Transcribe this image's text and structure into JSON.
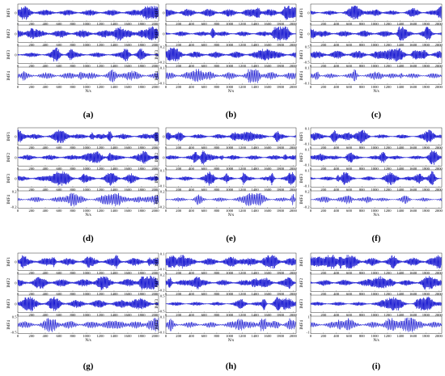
{
  "chart_data": {
    "type": "line",
    "x_ticks": [
      0,
      200,
      400,
      600,
      800,
      1000,
      1200,
      1400,
      1600,
      1800,
      2000
    ],
    "x_range": [
      0,
      2048
    ],
    "xlabel": "N/s",
    "line_color": "#0000cc",
    "panels": [
      {
        "label": "(a)",
        "subplots": [
          {
            "ylabel": "IMF1",
            "yticks": [
              "0",
              ""
            ],
            "ylim": [
              -1,
              1
            ]
          },
          {
            "ylabel": "IMF2",
            "yticks": [
              "0",
              ""
            ],
            "ylim": [
              -1,
              1
            ]
          },
          {
            "ylabel": "IMF3",
            "yticks": [
              "0",
              ""
            ],
            "ylim": [
              -1,
              1
            ]
          },
          {
            "ylabel": "IMF4",
            "yticks": [
              "",
              ""
            ],
            "ylim": [
              -1,
              1
            ]
          }
        ]
      },
      {
        "label": "(b)",
        "subplots": [
          {
            "ylabel": "IMF1",
            "yticks": [
              "0",
              ""
            ],
            "ylim": [
              -1,
              1
            ]
          },
          {
            "ylabel": "IMF2",
            "yticks": [
              "0",
              ""
            ],
            "ylim": [
              -1,
              1
            ]
          },
          {
            "ylabel": "IMF3",
            "yticks": [
              "0.2",
              "-0.2"
            ],
            "ylim": [
              -0.2,
              0.2
            ]
          },
          {
            "ylabel": "IMF4",
            "yticks": [
              "0.1",
              "-0.1"
            ],
            "ylim": [
              -0.1,
              0.1
            ]
          }
        ]
      },
      {
        "label": "(c)",
        "subplots": [
          {
            "ylabel": "IMF1",
            "yticks": [
              "0",
              ""
            ],
            "ylim": [
              -1,
              1
            ]
          },
          {
            "ylabel": "IMF2",
            "yticks": [
              "0",
              ""
            ],
            "ylim": [
              -1,
              1
            ]
          },
          {
            "ylabel": "IMF3",
            "yticks": [
              "0.5",
              "-0.5"
            ],
            "ylim": [
              -0.5,
              0.5
            ]
          },
          {
            "ylabel": "IMF4",
            "yticks": [
              "0.1",
              "-0.1"
            ],
            "ylim": [
              -0.1,
              0.1
            ]
          }
        ]
      },
      {
        "label": "(d)",
        "subplots": [
          {
            "ylabel": "IMF1",
            "yticks": [
              "0",
              ""
            ],
            "ylim": [
              -1,
              1
            ]
          },
          {
            "ylabel": "IMF2",
            "yticks": [
              "0",
              ""
            ],
            "ylim": [
              -1,
              1
            ]
          },
          {
            "ylabel": "IMF3",
            "yticks": [
              "0",
              ""
            ],
            "ylim": [
              -1,
              1
            ]
          },
          {
            "ylabel": "IMF4",
            "yticks": [
              "0.2",
              "-0.2"
            ],
            "ylim": [
              -0.2,
              0.2
            ]
          }
        ]
      },
      {
        "label": "(e)",
        "subplots": [
          {
            "ylabel": "IMF1",
            "yticks": [
              "0",
              ""
            ],
            "ylim": [
              -1,
              1
            ]
          },
          {
            "ylabel": "IMF2",
            "yticks": [
              "0",
              ""
            ],
            "ylim": [
              -1,
              1
            ]
          },
          {
            "ylabel": "IMF3",
            "yticks": [
              "0.1",
              "-0.1"
            ],
            "ylim": [
              -0.1,
              0.1
            ]
          },
          {
            "ylabel": "IMF4",
            "yticks": [
              "0.2",
              "-0.2"
            ],
            "ylim": [
              -0.2,
              0.2
            ]
          }
        ]
      },
      {
        "label": "(f)",
        "subplots": [
          {
            "ylabel": "IMF1",
            "yticks": [
              "0.1",
              "-0.1"
            ],
            "ylim": [
              -0.1,
              0.1
            ]
          },
          {
            "ylabel": "IMF2",
            "yticks": [
              "0.1",
              "-0.1"
            ],
            "ylim": [
              -0.1,
              0.1
            ]
          },
          {
            "ylabel": "IMF3",
            "yticks": [
              "0.1",
              "-0.1"
            ],
            "ylim": [
              -0.1,
              0.1
            ]
          },
          {
            "ylabel": "IMF4",
            "yticks": [
              "0.2",
              "-0.2"
            ],
            "ylim": [
              -0.2,
              0.2
            ]
          }
        ]
      },
      {
        "label": "(g)",
        "subplots": [
          {
            "ylabel": "IMF1",
            "yticks": [
              "0",
              ""
            ],
            "ylim": [
              -1,
              1
            ]
          },
          {
            "ylabel": "IMF2",
            "yticks": [
              "0",
              ""
            ],
            "ylim": [
              -1,
              1
            ]
          },
          {
            "ylabel": "IMF3",
            "yticks": [
              "0",
              ""
            ],
            "ylim": [
              -1,
              1
            ]
          },
          {
            "ylabel": "IMF4",
            "yticks": [
              "0.5",
              "-0.5"
            ],
            "ylim": [
              -0.5,
              0.5
            ]
          }
        ]
      },
      {
        "label": "(h)",
        "subplots": [
          {
            "ylabel": "IMF1",
            "yticks": [
              "0.1",
              "-0.1"
            ],
            "ylim": [
              -0.1,
              0.1
            ]
          },
          {
            "ylabel": "IMF2",
            "yticks": [
              "0.2",
              "-0.2"
            ],
            "ylim": [
              -0.2,
              0.2
            ]
          },
          {
            "ylabel": "IMF3",
            "yticks": [
              "0.5",
              "-0.5"
            ],
            "ylim": [
              -0.5,
              0.5
            ]
          },
          {
            "ylabel": "IMF4",
            "yticks": [
              "0.1",
              "-0.1"
            ],
            "ylim": [
              -0.1,
              0.1
            ]
          }
        ]
      },
      {
        "label": "(i)",
        "subplots": [
          {
            "ylabel": "IMF1",
            "yticks": [
              "",
              ""
            ],
            "ylim": [
              -1,
              1
            ]
          },
          {
            "ylabel": "IMF2",
            "yticks": [
              "",
              ""
            ],
            "ylim": [
              -1,
              1
            ]
          },
          {
            "ylabel": "IMF3",
            "yticks": [
              "",
              ""
            ],
            "ylim": [
              -1,
              1
            ]
          },
          {
            "ylabel": "IMF4",
            "yticks": [
              "1",
              "-1"
            ],
            "ylim": [
              -1,
              1
            ]
          }
        ]
      }
    ]
  }
}
